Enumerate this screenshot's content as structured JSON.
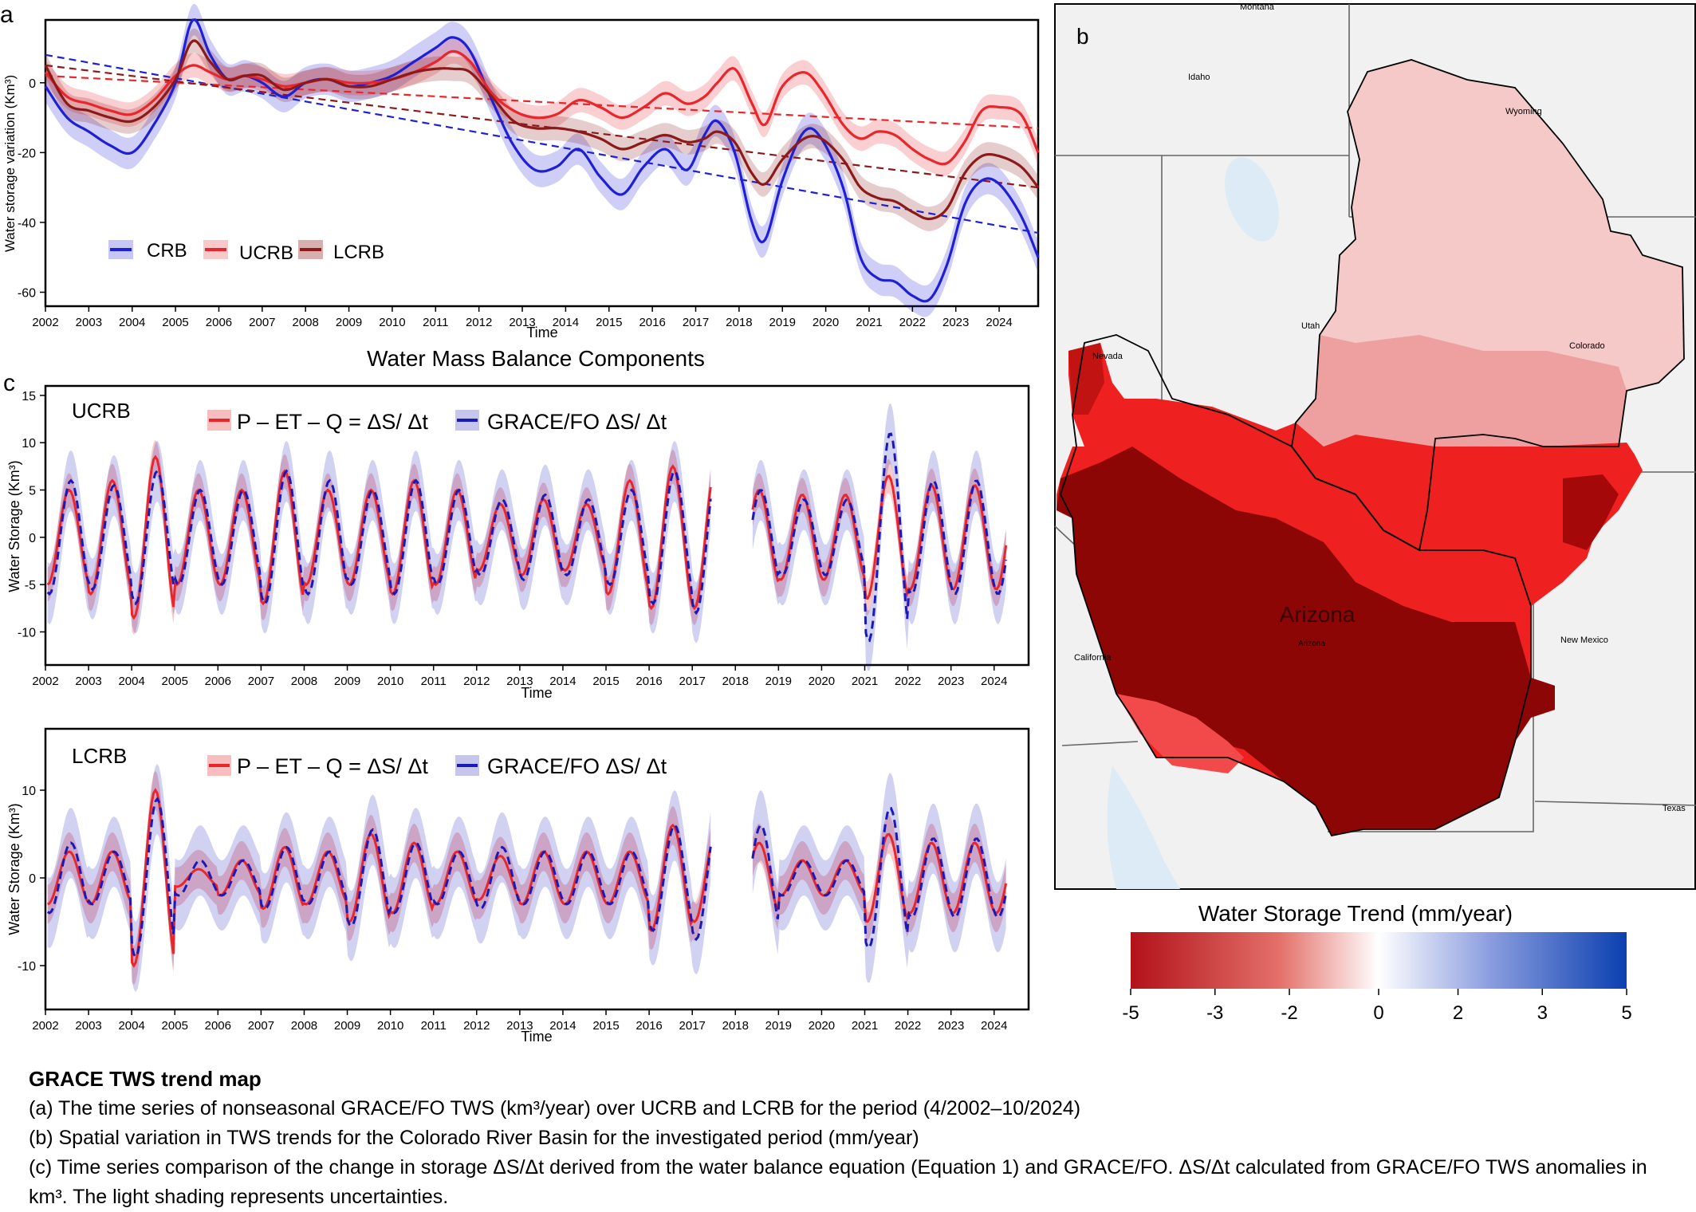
{
  "panel_a": {
    "letter": "a",
    "ylabel": "Water storage variation  (Km³)",
    "xlabel": "Time",
    "legend": [
      "CRB",
      "UCRB",
      "LCRB"
    ]
  },
  "panel_b": {
    "letter": "b",
    "colorbar_title": "Water Storage Trend (mm/year)",
    "colorbar_ticks": [
      "-5",
      "-3",
      "-2",
      "0",
      "2",
      "3",
      "5"
    ],
    "map_label_main": "Arizona",
    "state_labels": [
      "Montana",
      "Idaho",
      "Wyoming",
      "Utah",
      "Nevada",
      "Colorado",
      "California",
      "Arizona",
      "New Mexico",
      "Texas"
    ]
  },
  "panel_c": {
    "letter": "c",
    "title": "Water Mass Balance Components",
    "ucrb": {
      "name": "UCRB",
      "ylabel": "Water Storage (Km³)",
      "xlabel": "Time",
      "legend": [
        "P – ET – Q = ΔS/ Δt",
        "GRACE/FO ΔS/ Δt"
      ]
    },
    "lcrb": {
      "name": "LCRB",
      "ylabel": "Water Storage (Km³)",
      "xlabel": "Time",
      "legend": [
        "P – ET – Q = ΔS/ Δt",
        "GRACE/FO ΔS/ Δt"
      ]
    }
  },
  "caption": {
    "title": "GRACE TWS trend map",
    "lines": [
      "(a) The time series of nonseasonal GRACE/FO TWS (km³/year) over UCRB and LCRB for the period (4/2002–10/2024)",
      "(b) Spatial variation in TWS trends for the Colorado River Basin for the investigated period (mm/year)",
      "(c) Time series comparison of the change in storage ΔS/Δt derived from the water balance equation (Equation 1) and GRACE/FO. ΔS/Δt calculated from GRACE/FO TWS anomalies in km³. The light shading represents uncertainties."
    ]
  },
  "colors": {
    "crb": "#1f1fd6",
    "ucrb": "#e8262c",
    "lcrb": "#8b1a1a",
    "grace": "#1a1ab8"
  },
  "chart_data": [
    {
      "id": "a",
      "type": "line",
      "xlabel": "Time",
      "ylabel": "Water storage variation  (Km³)",
      "xlim": [
        2002,
        2024.9
      ],
      "ylim": [
        -64,
        18
      ],
      "xticks": [
        2002,
        2003,
        2004,
        2005,
        2006,
        2007,
        2008,
        2009,
        2010,
        2011,
        2012,
        2013,
        2014,
        2015,
        2016,
        2017,
        2018,
        2019,
        2020,
        2021,
        2022,
        2023,
        2024
      ],
      "yticks": [
        0,
        -20,
        -40,
        -60
      ],
      "legend_position": "bottom-left",
      "series": [
        {
          "name": "CRB",
          "color": "#1f1fd6",
          "x": [
            2002,
            2002.5,
            2003,
            2003.5,
            2004,
            2004.5,
            2005,
            2005.4,
            2005.8,
            2006.2,
            2006.6,
            2007,
            2007.5,
            2008,
            2008.5,
            2009,
            2009.5,
            2010,
            2010.5,
            2011,
            2011.4,
            2011.8,
            2012.3,
            2012.8,
            2013.3,
            2013.8,
            2014.3,
            2014.8,
            2015.3,
            2015.8,
            2016.3,
            2016.8,
            2017.2,
            2017.5,
            2017.9,
            2018.3,
            2018.6,
            2019,
            2019.5,
            2019.9,
            2020.4,
            2020.8,
            2021.2,
            2021.6,
            2022,
            2022.4,
            2022.8,
            2023.2,
            2023.6,
            2024,
            2024.5,
            2024.9
          ],
          "y": [
            -1,
            -10,
            -14,
            -18,
            -20,
            -12,
            0,
            18,
            8,
            1,
            2,
            0,
            -4,
            0,
            1,
            -1,
            0,
            2,
            6,
            10,
            13,
            9,
            -5,
            -18,
            -25,
            -24,
            -19,
            -27,
            -32,
            -24,
            -19,
            -25,
            -15,
            -11,
            -20,
            -40,
            -45,
            -28,
            -14,
            -16,
            -30,
            -50,
            -56,
            -57,
            -61,
            -62,
            -52,
            -35,
            -28,
            -29,
            -38,
            -50
          ]
        },
        {
          "name": "UCRB",
          "color": "#e8262c",
          "x": [
            2002,
            2002.5,
            2003,
            2003.5,
            2004,
            2004.5,
            2005,
            2005.4,
            2005.8,
            2006.2,
            2006.6,
            2007,
            2007.5,
            2008,
            2008.5,
            2009,
            2009.5,
            2010,
            2010.5,
            2011,
            2011.4,
            2011.8,
            2012.3,
            2012.8,
            2013.3,
            2013.8,
            2014.3,
            2014.8,
            2015.3,
            2015.8,
            2016.3,
            2016.8,
            2017.2,
            2017.5,
            2017.9,
            2018.3,
            2018.6,
            2019,
            2019.5,
            2019.9,
            2020.4,
            2020.8,
            2021.2,
            2021.6,
            2022,
            2022.4,
            2022.8,
            2023.2,
            2023.6,
            2024,
            2024.5,
            2024.9
          ],
          "y": [
            3,
            -4,
            -6,
            -8,
            -9,
            -5,
            2,
            5,
            3,
            1,
            2,
            1,
            -1,
            0,
            1,
            0,
            0,
            1,
            3,
            6,
            9,
            6,
            -3,
            -8,
            -10,
            -9,
            -5,
            -7,
            -10,
            -7,
            -3,
            -6,
            -4,
            0,
            4,
            -6,
            -12,
            -1,
            3,
            -2,
            -12,
            -16,
            -14,
            -15,
            -19,
            -22,
            -23,
            -17,
            -8,
            -7,
            -9,
            -20
          ]
        },
        {
          "name": "LCRB",
          "color": "#8b1a1a",
          "x": [
            2002,
            2002.5,
            2003,
            2003.5,
            2004,
            2004.5,
            2005,
            2005.4,
            2005.8,
            2006.2,
            2006.6,
            2007,
            2007.5,
            2008,
            2008.5,
            2009,
            2009.5,
            2010,
            2010.5,
            2011,
            2011.4,
            2011.8,
            2012.3,
            2012.8,
            2013.3,
            2013.8,
            2014.3,
            2014.8,
            2015.3,
            2015.8,
            2016.3,
            2016.8,
            2017.2,
            2017.5,
            2017.9,
            2018.3,
            2018.6,
            2019,
            2019.5,
            2019.9,
            2020.4,
            2020.8,
            2021.2,
            2021.6,
            2022,
            2022.4,
            2022.8,
            2023.2,
            2023.6,
            2024,
            2024.5,
            2024.9
          ],
          "y": [
            5,
            -6,
            -8,
            -10,
            -11,
            -7,
            1,
            12,
            6,
            1,
            2,
            2,
            -2,
            0,
            1,
            -1,
            -1,
            1,
            3,
            4,
            4,
            3,
            -4,
            -11,
            -13,
            -13,
            -14,
            -16,
            -19,
            -17,
            -15,
            -17,
            -16,
            -14,
            -17,
            -26,
            -29,
            -22,
            -16,
            -16,
            -22,
            -30,
            -33,
            -34,
            -37,
            -39,
            -36,
            -26,
            -21,
            -21,
            -24,
            -30
          ]
        },
        {
          "name": "",
          "style": "dashed",
          "color": "#1f1fd6",
          "x": [
            2002,
            2024.9
          ],
          "y": [
            8,
            -43
          ]
        },
        {
          "name": "",
          "style": "dashed",
          "color": "#e8262c",
          "x": [
            2002,
            2024.9
          ],
          "y": [
            2,
            -13
          ]
        },
        {
          "name": "",
          "style": "dashed",
          "color": "#8b1a1a",
          "x": [
            2002,
            2024.9
          ],
          "y": [
            5,
            -30
          ]
        }
      ]
    },
    {
      "id": "c_ucrb",
      "type": "line",
      "title": "UCRB",
      "xlabel": "Time",
      "ylabel": "Water Storage (Km³)",
      "xlim": [
        2002,
        2024.8
      ],
      "ylim": [
        -13.5,
        16
      ],
      "xticks": [
        2002,
        2003,
        2004,
        2005,
        2006,
        2007,
        2008,
        2009,
        2010,
        2011,
        2012,
        2013,
        2014,
        2015,
        2016,
        2017,
        2018,
        2019,
        2020,
        2021,
        2022,
        2023,
        2024
      ],
      "yticks": [
        15,
        10,
        5,
        0,
        -5,
        -10
      ],
      "legend_position": "top-center",
      "gap": [
        2017.45,
        2018.4
      ],
      "series": [
        {
          "name": "P – ET – Q = ΔS/ Δt",
          "color": "#e8262c",
          "uncertainty": 1.8,
          "amplitudes": [
            5,
            6,
            8.5,
            5,
            5,
            7,
            5,
            5,
            6,
            5,
            3.5,
            4,
            3.5,
            6,
            7.5,
            7.5,
            5,
            4.5,
            4.5,
            6.5,
            5.5
          ]
        },
        {
          "name": "GRACE/FO ΔS/ Δt",
          "color": "#1a1ab8",
          "style": "dashed",
          "uncertainty": 3.2,
          "amplitudes": [
            6,
            5.5,
            7,
            5,
            5,
            7,
            6,
            5,
            6,
            5,
            4,
            4.5,
            4,
            5,
            7,
            8,
            5,
            4,
            4,
            11,
            6
          ]
        }
      ]
    },
    {
      "id": "c_lcrb",
      "type": "line",
      "title": "LCRB",
      "xlabel": "Time",
      "ylabel": "Water Storage (Km³)",
      "xlim": [
        2002,
        2024.8
      ],
      "ylim": [
        -15,
        17
      ],
      "xticks": [
        2002,
        2003,
        2004,
        2005,
        2006,
        2007,
        2008,
        2009,
        2010,
        2011,
        2012,
        2013,
        2014,
        2015,
        2016,
        2017,
        2018,
        2019,
        2020,
        2021,
        2022,
        2023,
        2024
      ],
      "yticks": [
        10,
        0,
        -10
      ],
      "legend_position": "top-center",
      "gap": [
        2017.45,
        2018.4
      ],
      "series": [
        {
          "name": "P – ET – Q = ΔS/ Δt",
          "color": "#e8262c",
          "uncertainty": 2.2,
          "amplitudes": [
            3,
            3,
            10,
            1,
            2,
            3.5,
            3,
            5,
            4,
            3,
            2.5,
            3,
            3,
            3,
            6,
            5,
            4,
            2,
            2,
            5,
            4
          ]
        },
        {
          "name": "GRACE/FO ΔS/ Δt",
          "color": "#1a1ab8",
          "style": "dashed",
          "uncertainty": 4,
          "amplitudes": [
            4,
            3,
            9,
            2,
            2,
            3.5,
            3,
            5.5,
            4,
            3,
            3.5,
            3,
            3,
            3,
            6,
            7,
            6,
            2,
            2,
            8,
            4.5
          ]
        }
      ]
    }
  ]
}
